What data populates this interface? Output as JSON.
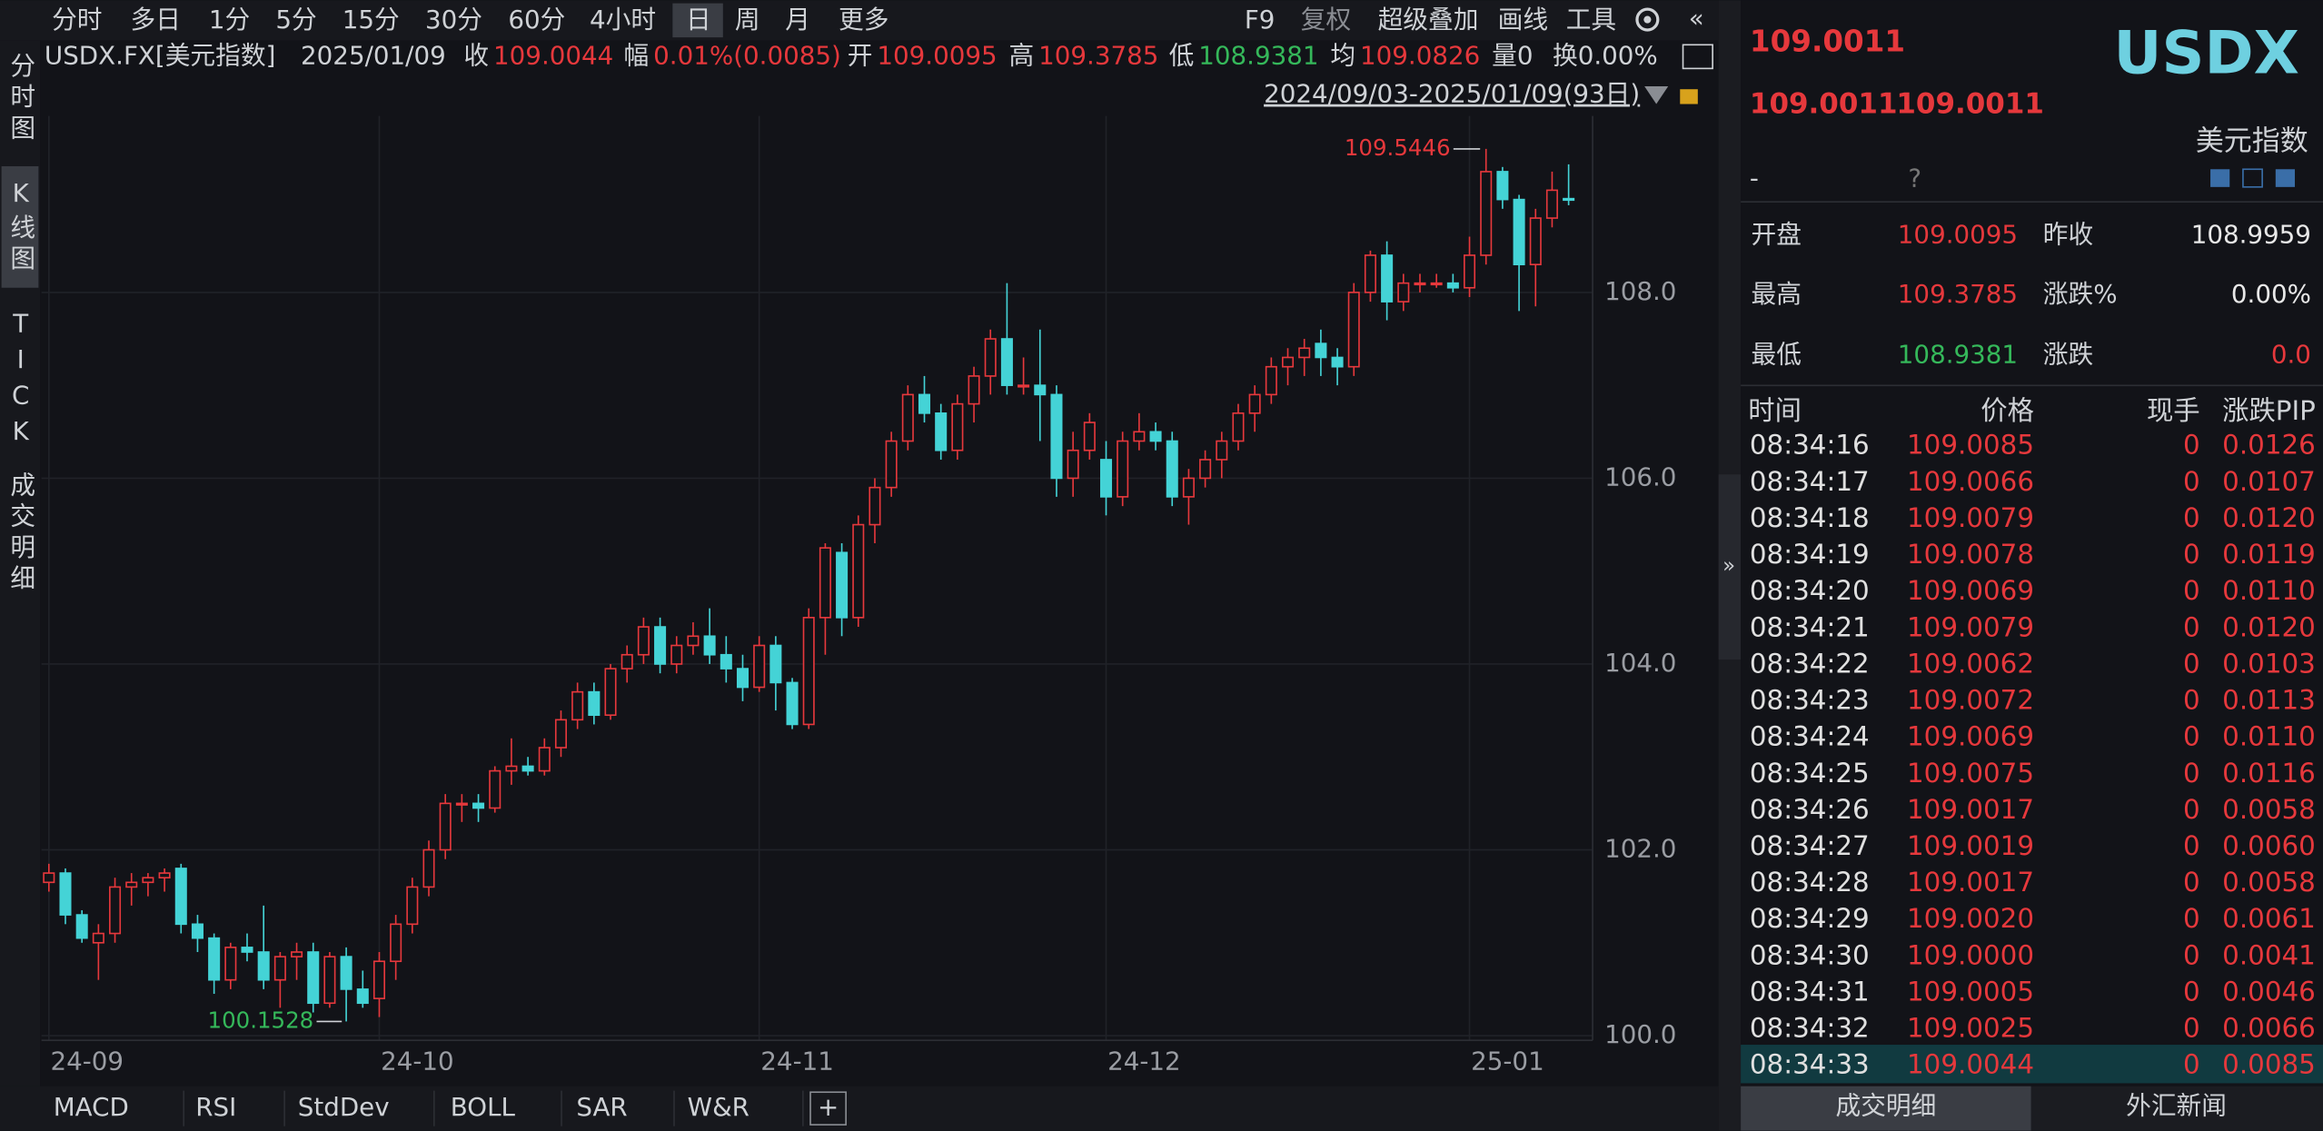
{
  "chart_data": {
    "type": "candlestick",
    "categories": [
      "24-09",
      null,
      null,
      null,
      null,
      null,
      null,
      null,
      null,
      null,
      null,
      null,
      null,
      null,
      null,
      null,
      null,
      null,
      null,
      null,
      "24-10",
      null,
      null,
      null,
      null,
      null,
      null,
      null,
      null,
      null,
      null,
      null,
      null,
      null,
      null,
      null,
      null,
      null,
      null,
      null,
      null,
      null,
      null,
      "24-11",
      null,
      null,
      null,
      null,
      null,
      null,
      null,
      null,
      null,
      null,
      null,
      null,
      null,
      null,
      null,
      null,
      null,
      null,
      null,
      null,
      "24-12",
      null,
      null,
      null,
      null,
      null,
      null,
      null,
      null,
      null,
      null,
      null,
      null,
      null,
      null,
      null,
      null,
      null,
      null,
      null,
      null,
      null,
      "25-01",
      null,
      null,
      null,
      null,
      null,
      null
    ],
    "open": [
      101.65,
      101.75,
      101.3,
      101.0,
      101.1,
      101.6,
      101.65,
      101.7,
      101.8,
      101.2,
      101.05,
      100.6,
      100.95,
      100.9,
      100.6,
      100.85,
      100.9,
      100.35,
      100.85,
      100.5,
      100.4,
      100.8,
      101.2,
      101.6,
      102.0,
      102.5,
      102.5,
      102.45,
      102.85,
      102.9,
      102.85,
      103.1,
      103.4,
      103.7,
      103.45,
      103.95,
      104.1,
      104.4,
      104.0,
      104.2,
      104.3,
      104.1,
      103.95,
      103.75,
      104.2,
      103.8,
      103.35,
      104.5,
      105.2,
      104.5,
      105.5,
      105.9,
      106.4,
      106.9,
      106.7,
      106.3,
      106.8,
      107.1,
      107.5,
      107.0,
      107.0,
      106.9,
      106.0,
      106.3,
      106.2,
      105.8,
      106.4,
      106.5,
      106.4,
      105.8,
      106.0,
      106.2,
      106.4,
      106.7,
      106.9,
      107.2,
      107.3,
      107.45,
      107.3,
      107.2,
      108.0,
      108.4,
      107.9,
      108.1,
      108.1,
      108.1,
      108.05,
      108.4,
      109.3,
      109.0,
      108.3,
      108.8,
      109.0095
    ],
    "high": [
      101.85,
      101.8,
      101.35,
      101.2,
      101.7,
      101.75,
      101.75,
      101.8,
      101.85,
      101.3,
      101.1,
      101.0,
      101.1,
      101.4,
      100.9,
      101.0,
      101.0,
      100.9,
      100.95,
      100.7,
      100.9,
      101.3,
      101.7,
      102.1,
      102.6,
      102.6,
      102.6,
      102.9,
      103.2,
      103.0,
      103.2,
      103.5,
      103.8,
      103.8,
      104.0,
      104.2,
      104.5,
      104.5,
      104.3,
      104.45,
      104.6,
      104.3,
      104.1,
      104.3,
      104.3,
      103.85,
      104.6,
      105.3,
      105.3,
      105.6,
      106.0,
      106.5,
      107.0,
      107.1,
      106.8,
      106.9,
      107.2,
      107.6,
      108.1,
      107.3,
      107.6,
      107.0,
      106.5,
      106.7,
      106.4,
      106.5,
      106.7,
      106.6,
      106.5,
      106.1,
      106.3,
      106.5,
      106.8,
      107.0,
      107.3,
      107.4,
      107.5,
      107.6,
      107.4,
      108.1,
      108.45,
      108.55,
      108.2,
      108.2,
      108.2,
      108.2,
      108.6,
      109.5446,
      109.35,
      109.05,
      108.9,
      109.3,
      109.3785
    ],
    "low": [
      101.55,
      101.2,
      101.0,
      100.6,
      101.0,
      101.4,
      101.5,
      101.55,
      101.1,
      100.9,
      100.45,
      100.5,
      100.8,
      100.5,
      100.3,
      100.6,
      100.25,
      100.3,
      100.1528,
      100.3,
      100.2,
      100.6,
      101.1,
      101.5,
      101.9,
      102.3,
      102.3,
      102.4,
      102.7,
      102.8,
      102.8,
      103.0,
      103.3,
      103.35,
      103.4,
      103.8,
      104.0,
      103.9,
      103.9,
      104.1,
      104.0,
      103.8,
      103.6,
      103.7,
      103.5,
      103.3,
      103.3,
      104.1,
      104.3,
      104.4,
      105.3,
      105.8,
      106.3,
      106.6,
      106.2,
      106.2,
      106.6,
      106.9,
      106.9,
      106.9,
      106.4,
      105.8,
      105.8,
      106.2,
      105.6,
      105.7,
      106.3,
      106.3,
      105.7,
      105.5,
      105.9,
      106.0,
      106.3,
      106.5,
      106.8,
      107.0,
      107.1,
      107.1,
      107.0,
      107.1,
      107.9,
      107.7,
      107.8,
      108.0,
      108.05,
      108.0,
      107.95,
      108.3,
      108.9,
      107.8,
      107.85,
      108.7,
      108.9381
    ],
    "close": [
      101.75,
      101.3,
      101.05,
      101.1,
      101.6,
      101.65,
      101.7,
      101.75,
      101.2,
      101.05,
      100.6,
      100.95,
      100.9,
      100.6,
      100.85,
      100.9,
      100.35,
      100.85,
      100.5,
      100.35,
      100.8,
      101.2,
      101.6,
      102.0,
      102.5,
      102.5,
      102.45,
      102.85,
      102.9,
      102.85,
      103.1,
      103.4,
      103.7,
      103.45,
      103.95,
      104.1,
      104.4,
      104.0,
      104.2,
      104.3,
      104.1,
      103.95,
      103.75,
      104.2,
      103.8,
      103.35,
      104.5,
      105.25,
      104.5,
      105.5,
      105.9,
      106.4,
      106.9,
      106.7,
      106.3,
      106.8,
      107.1,
      107.5,
      107.0,
      107.0,
      106.9,
      106.0,
      106.3,
      106.6,
      105.8,
      106.4,
      106.5,
      106.4,
      105.8,
      106.0,
      106.2,
      106.4,
      106.7,
      106.9,
      107.2,
      107.3,
      107.4,
      107.3,
      107.2,
      108.0,
      108.4,
      107.9,
      108.1,
      108.1,
      108.1,
      108.05,
      108.4,
      109.3,
      109.0,
      108.3,
      108.8,
      109.1,
      109.0044
    ],
    "up_color": "#e6383c",
    "down_color": "#44d3d6",
    "max_color": "#e6383c",
    "min_color": "#35b85a",
    "ylim": [
      99.95,
      109.9
    ],
    "yticks": [
      {
        "value": 100,
        "label": "100.0"
      },
      {
        "value": 102,
        "label": "102.0"
      },
      {
        "value": 104,
        "label": "104.0"
      },
      {
        "value": 106,
        "label": "106.0"
      },
      {
        "value": 108,
        "label": "108.0"
      }
    ],
    "grid": true
  },
  "ui": {
    "toolbar": {
      "periods": [
        "分时",
        "多日",
        "1分",
        "5分",
        "15分",
        "30分",
        "60分",
        "4小时",
        "日",
        "周",
        "月",
        "更多"
      ],
      "tools": [
        "F9",
        "复权",
        "超级叠加",
        "画线",
        "工具"
      ]
    },
    "info": {
      "symbol": "USDX.FX[美元指数]",
      "date": "2025/01/09",
      "close_label": "收",
      "close": "109.0044",
      "change_label": "幅",
      "change": "0.01%(0.0085)",
      "open_label": "开",
      "open": "109.0095",
      "high_label": "高",
      "high": "109.3785",
      "low_label": "低",
      "low": "108.9381",
      "avg_label": "均",
      "avg": "109.0826",
      "volume": "量0",
      "turnover": "换0.00%"
    },
    "range": "2024/09/03-2025/01/09(93日)",
    "sidebar": [
      "分时图",
      "K线图",
      "TICK",
      "成交明细"
    ],
    "indicators": [
      "MACD",
      "RSI",
      "StdDev",
      "BOLL",
      "SAR",
      "W&R"
    ],
    "quote": {
      "price": "109.0011",
      "bid": "109.0011",
      "ask": "109.0011",
      "code": "USDX",
      "name": "美元指数",
      "dash": "-",
      "help": "?",
      "stats": [
        [
          "开盘",
          "109.0095",
          "昨收",
          "108.9959"
        ],
        [
          "最高",
          "109.3785",
          "涨跌%",
          "0.00%"
        ],
        [
          "最低",
          "108.9381",
          "涨跌",
          "0.0"
        ]
      ]
    },
    "ticks": {
      "headers": [
        "时间",
        "价格",
        "现手",
        "涨跌PIP"
      ],
      "rows": [
        [
          "08:34:16",
          "109.0085",
          "0",
          "0.0126"
        ],
        [
          "08:34:17",
          "109.0066",
          "0",
          "0.0107"
        ],
        [
          "08:34:18",
          "109.0079",
          "0",
          "0.0120"
        ],
        [
          "08:34:19",
          "109.0078",
          "0",
          "0.0119"
        ],
        [
          "08:34:20",
          "109.0069",
          "0",
          "0.0110"
        ],
        [
          "08:34:21",
          "109.0079",
          "0",
          "0.0120"
        ],
        [
          "08:34:22",
          "109.0062",
          "0",
          "0.0103"
        ],
        [
          "08:34:23",
          "109.0072",
          "0",
          "0.0113"
        ],
        [
          "08:34:24",
          "109.0069",
          "0",
          "0.0110"
        ],
        [
          "08:34:25",
          "109.0075",
          "0",
          "0.0116"
        ],
        [
          "08:34:26",
          "109.0017",
          "0",
          "0.0058"
        ],
        [
          "08:34:27",
          "109.0019",
          "0",
          "0.0060"
        ],
        [
          "08:34:28",
          "109.0017",
          "0",
          "0.0058"
        ],
        [
          "08:34:29",
          "109.0020",
          "0",
          "0.0061"
        ],
        [
          "08:34:30",
          "109.0000",
          "0",
          "0.0041"
        ],
        [
          "08:34:31",
          "109.0005",
          "0",
          "0.0046"
        ],
        [
          "08:34:32",
          "109.0025",
          "0",
          "0.0066"
        ],
        [
          "08:34:33",
          "109.0044",
          "0",
          "0.0085"
        ]
      ]
    },
    "tabs": [
      "成交明细",
      "外汇新闻"
    ]
  }
}
